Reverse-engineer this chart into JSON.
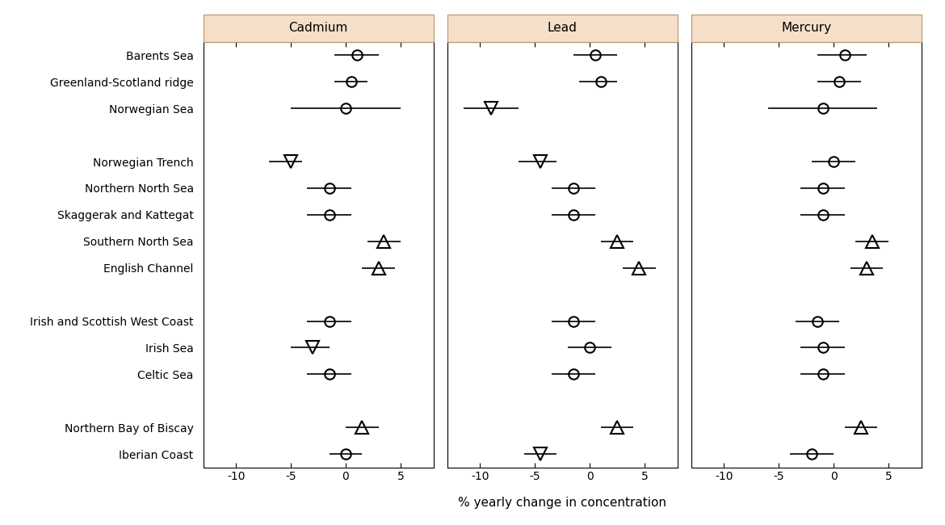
{
  "regions": [
    "Barents Sea",
    "Greenland-Scotland ridge",
    "Norwegian Sea",
    "",
    "Norwegian Trench",
    "Northern North Sea",
    "Skaggerak and Kattegat",
    "Southern North Sea",
    "English Channel",
    "",
    "Irish and Scottish West Coast",
    "Irish Sea",
    "Celtic Sea",
    "",
    "Northern Bay of Biscay",
    "Iberian Coast"
  ],
  "cadmium": {
    "values": [
      1.0,
      0.5,
      0.0,
      null,
      -5.0,
      -1.5,
      -1.5,
      3.5,
      3.0,
      null,
      -1.5,
      -3.0,
      -1.5,
      null,
      1.5,
      0.0
    ],
    "err_low": [
      2.0,
      1.5,
      5.0,
      null,
      2.0,
      2.0,
      2.0,
      1.5,
      1.5,
      null,
      2.0,
      2.0,
      2.0,
      null,
      1.5,
      1.5
    ],
    "err_high": [
      2.0,
      1.5,
      5.0,
      null,
      1.0,
      2.0,
      2.0,
      1.5,
      1.5,
      null,
      2.0,
      1.5,
      2.0,
      null,
      1.5,
      1.5
    ],
    "marker": [
      "o",
      "o",
      "o",
      null,
      "v",
      "o",
      "o",
      "^",
      "^",
      null,
      "o",
      "v",
      "o",
      null,
      "^",
      "o"
    ]
  },
  "lead": {
    "values": [
      0.5,
      1.0,
      -9.0,
      null,
      -4.5,
      -1.5,
      -1.5,
      2.5,
      4.5,
      null,
      -1.5,
      0.0,
      -1.5,
      null,
      2.5,
      -4.5
    ],
    "err_low": [
      2.0,
      2.0,
      2.5,
      null,
      2.0,
      2.0,
      2.0,
      1.5,
      1.5,
      null,
      2.0,
      2.0,
      2.0,
      null,
      1.5,
      1.5
    ],
    "err_high": [
      2.0,
      1.5,
      2.5,
      null,
      1.5,
      2.0,
      2.0,
      1.5,
      1.5,
      null,
      2.0,
      2.0,
      2.0,
      null,
      1.5,
      1.5
    ],
    "marker": [
      "o",
      "o",
      "v",
      null,
      "v",
      "o",
      "o",
      "^",
      "^",
      null,
      "o",
      "o",
      "o",
      null,
      "^",
      "v"
    ]
  },
  "mercury": {
    "values": [
      1.0,
      0.5,
      -1.0,
      null,
      0.0,
      -1.0,
      -1.0,
      3.5,
      3.0,
      null,
      -1.5,
      -1.0,
      -1.0,
      null,
      2.5,
      -2.0
    ],
    "err_low": [
      2.5,
      2.0,
      5.0,
      null,
      2.0,
      2.0,
      2.0,
      1.5,
      1.5,
      null,
      2.0,
      2.0,
      2.0,
      null,
      1.5,
      2.0
    ],
    "err_high": [
      2.0,
      2.0,
      5.0,
      null,
      2.0,
      2.0,
      2.0,
      1.5,
      1.5,
      null,
      2.0,
      2.0,
      2.0,
      null,
      1.5,
      2.0
    ],
    "marker": [
      "o",
      "o",
      "o",
      null,
      "o",
      "o",
      "o",
      "^",
      "^",
      null,
      "o",
      "o",
      "o",
      null,
      "^",
      "o"
    ]
  },
  "panel_titles": [
    "Cadmium",
    "Lead",
    "Mercury"
  ],
  "xlabel": "% yearly change in concentration",
  "xlim": [
    -13,
    8
  ],
  "xticks": [
    -10,
    -5,
    0,
    5
  ],
  "header_color": "#f5dfc8",
  "header_edge_color": "#b8956a",
  "marker_size": 9,
  "marker_linewidth": 1.5,
  "err_linewidth": 1.2
}
